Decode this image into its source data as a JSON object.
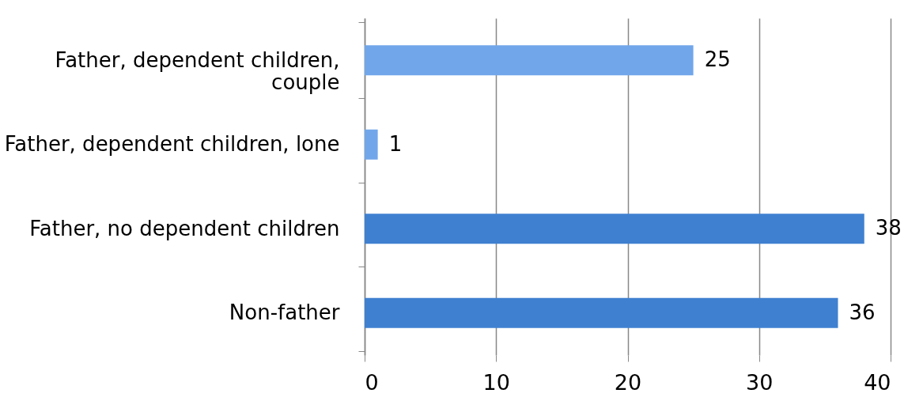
{
  "chart_data": {
    "type": "bar",
    "orientation": "horizontal",
    "categories": [
      "Father, dependent children, couple",
      "Father, dependent children, lone",
      "Father, no dependent children",
      "Non-father"
    ],
    "values": [
      25,
      1,
      38,
      36
    ],
    "colors": [
      "#72a6ea",
      "#72a6ea",
      "#3f80d0",
      "#3f80d0"
    ],
    "xlim": [
      0,
      40
    ],
    "xticks": [
      0,
      10,
      20,
      30,
      40
    ],
    "grid": "x",
    "data_labels": true
  }
}
